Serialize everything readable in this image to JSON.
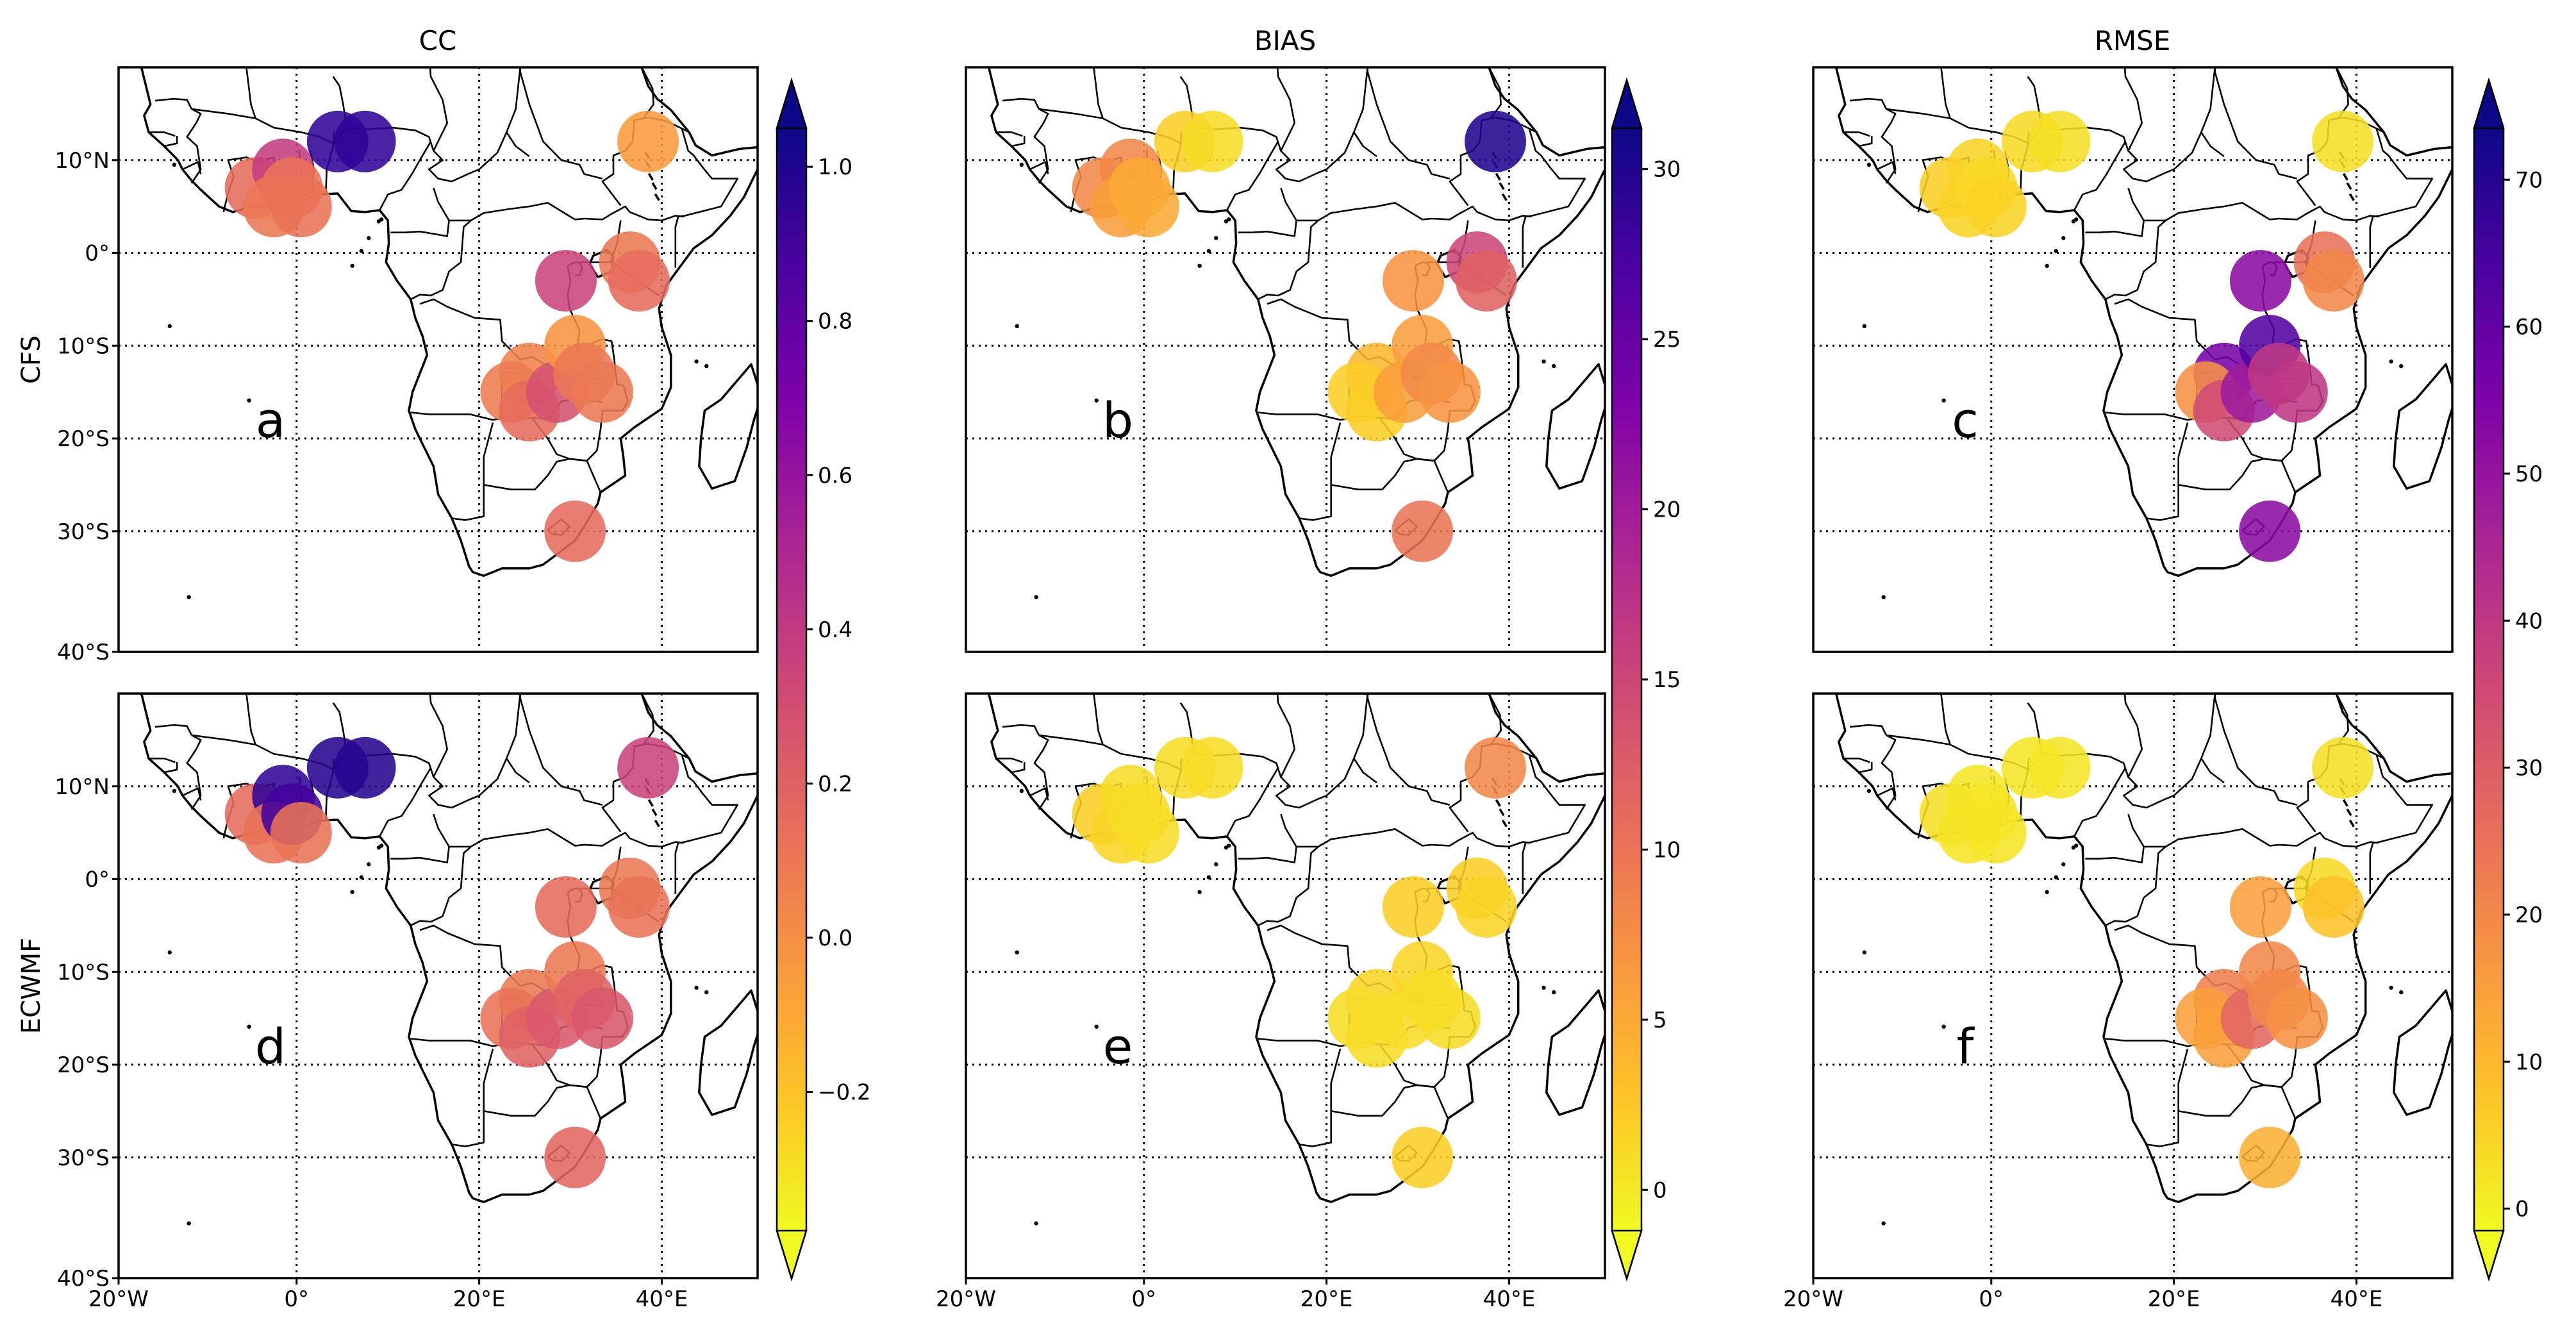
{
  "chart_data": {
    "type": "bubble_map",
    "column_titles": [
      "CC",
      "BIAS",
      "RMSE"
    ],
    "row_labels": [
      "CFS",
      "ECWMF"
    ],
    "lon_ticks": [
      "20°W",
      "0°",
      "20°E",
      "40°E"
    ],
    "lat_ticks": [
      "10°N",
      "0°",
      "10°S",
      "20°S",
      "30°S",
      "40°S"
    ],
    "lon_range": [
      -20,
      50
    ],
    "lat_range": [
      -43,
      20
    ],
    "colormap": "plasma_r",
    "colorbars": [
      {
        "name": "CC",
        "min": -0.38,
        "max": 1.05,
        "ticks": [
          -0.2,
          0.0,
          0.2,
          0.4,
          0.6,
          0.8,
          1.0
        ],
        "tick_labels": [
          "−0.2",
          "0.0",
          "0.2",
          "0.4",
          "0.6",
          "0.8",
          "1.0"
        ]
      },
      {
        "name": "BIAS",
        "min": -1.2,
        "max": 31.2,
        "ticks": [
          0,
          5,
          10,
          15,
          20,
          25,
          30
        ],
        "tick_labels": [
          "0",
          "5",
          "10",
          "15",
          "20",
          "25",
          "30"
        ]
      },
      {
        "name": "RMSE",
        "min": -1.5,
        "max": 73.5,
        "ticks": [
          0,
          10,
          20,
          30,
          40,
          50,
          60,
          70
        ],
        "tick_labels": [
          "0",
          "10",
          "20",
          "30",
          "40",
          "50",
          "60",
          "70"
        ]
      }
    ],
    "stations": [
      {
        "lon": -5,
        "lat": 7
      },
      {
        "lon": -2,
        "lat": 9
      },
      {
        "lon": -3,
        "lat": 5
      },
      {
        "lon": -1,
        "lat": 7
      },
      {
        "lon": 0,
        "lat": 5
      },
      {
        "lon": 4,
        "lat": 12
      },
      {
        "lon": 7,
        "lat": 12
      },
      {
        "lon": 38,
        "lat": 12
      },
      {
        "lon": 29,
        "lat": -3
      },
      {
        "lon": 36,
        "lat": -1
      },
      {
        "lon": 37,
        "lat": -3
      },
      {
        "lon": 25,
        "lat": -13
      },
      {
        "lon": 23,
        "lat": -15
      },
      {
        "lon": 25,
        "lat": -17
      },
      {
        "lon": 28,
        "lat": -15
      },
      {
        "lon": 30,
        "lat": -10
      },
      {
        "lon": 31,
        "lat": -13
      },
      {
        "lon": 33,
        "lat": -15
      },
      {
        "lon": 30,
        "lat": -30
      }
    ],
    "panels": [
      {
        "label": "a",
        "column": "CC",
        "row": "CFS",
        "values": [
          0.15,
          0.38,
          0.1,
          0.12,
          0.12,
          0.95,
          0.95,
          -0.05,
          0.35,
          0.1,
          0.15,
          0.05,
          0.08,
          0.15,
          0.28,
          -0.02,
          0.1,
          0.1,
          0.15
        ]
      },
      {
        "label": "b",
        "column": "BIAS",
        "row": "CFS",
        "values": [
          8,
          8,
          6,
          5,
          5,
          2,
          1,
          30,
          7,
          15,
          12,
          4,
          2,
          2,
          6,
          6,
          8,
          7,
          10
        ]
      },
      {
        "label": "c",
        "column": "RMSE",
        "row": "CFS",
        "values": [
          6,
          5,
          5,
          4,
          5,
          4,
          3,
          3,
          52,
          25,
          20,
          56,
          18,
          35,
          48,
          63,
          40,
          40,
          52
        ]
      },
      {
        "label": "d",
        "column": "CC",
        "row": "ECWMF",
        "values": [
          0.15,
          0.95,
          0.12,
          0.9,
          0.12,
          0.98,
          0.98,
          0.35,
          0.15,
          0.1,
          0.12,
          0.1,
          0.12,
          0.2,
          0.25,
          0.1,
          0.2,
          0.25,
          0.18
        ]
      },
      {
        "label": "e",
        "column": "BIAS",
        "row": "ECWMF",
        "values": [
          2,
          1,
          1.5,
          1,
          1,
          1,
          1,
          8,
          2,
          2,
          1.5,
          1.5,
          1,
          1,
          1,
          1.5,
          1,
          1,
          2
        ]
      },
      {
        "label": "f",
        "column": "RMSE",
        "row": "ECWMF",
        "values": [
          3,
          2,
          2,
          2,
          2,
          2,
          2,
          3,
          15,
          4,
          8,
          22,
          15,
          15,
          28,
          20,
          20,
          18,
          12
        ]
      }
    ]
  }
}
